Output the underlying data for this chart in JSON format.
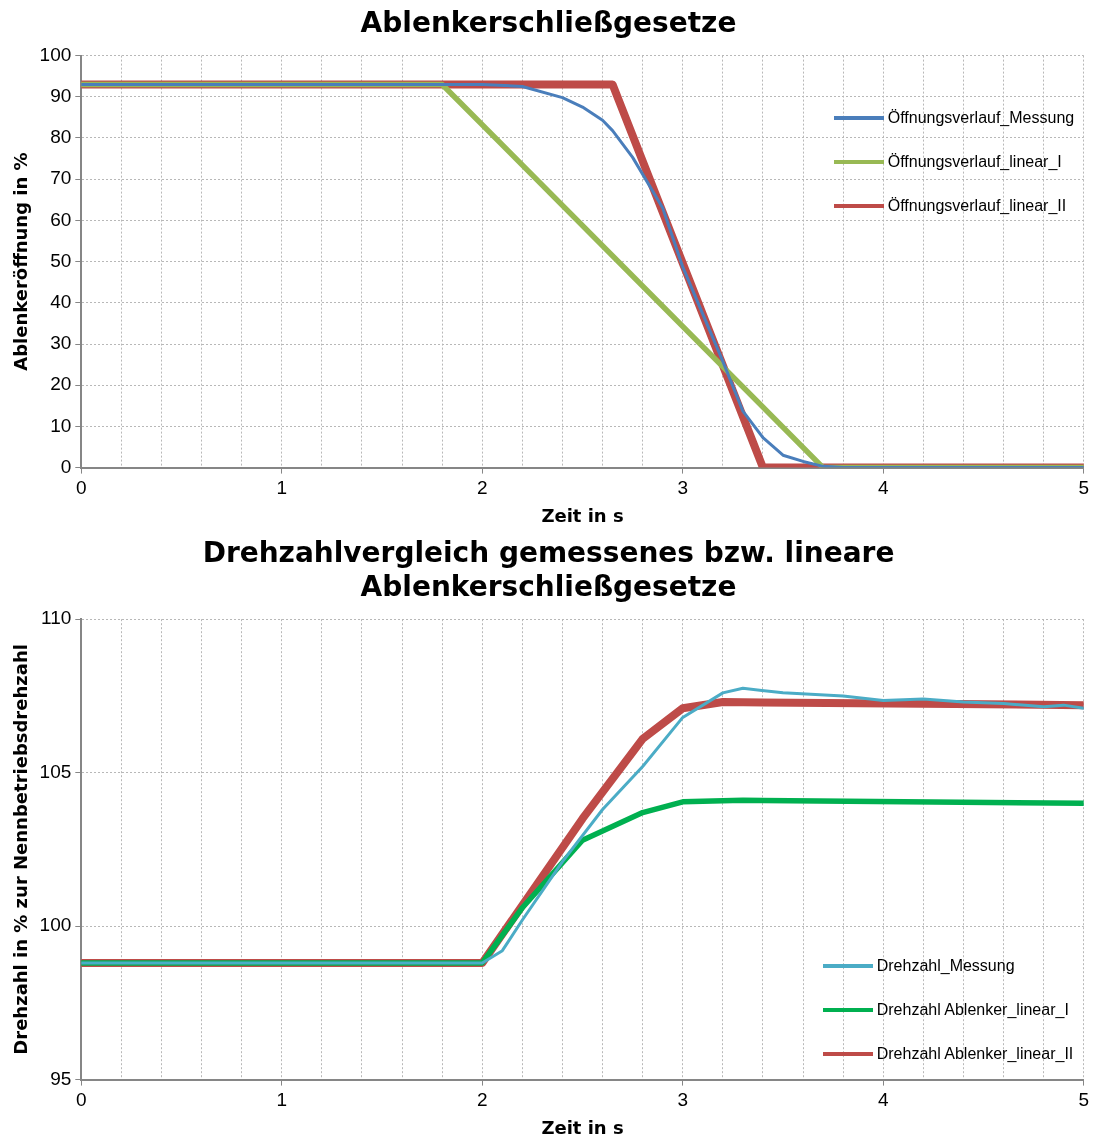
{
  "chart_data": [
    {
      "type": "line",
      "title": "Ablenkerschließgesetze",
      "xlabel": "Zeit in s",
      "ylabel": "Ablenkeröffnung in %",
      "xlim": [
        0,
        5
      ],
      "xticks": [
        0,
        {
          "value": 0.2,
          "label": null
        },
        {
          "value": 0.4,
          "label": null
        },
        {
          "value": 0.6,
          "label": null
        },
        {
          "value": 0.8,
          "label": null
        },
        1,
        {
          "value": 1.2,
          "label": null
        },
        {
          "value": 1.4,
          "label": null
        },
        {
          "value": 1.6,
          "label": null
        },
        {
          "value": 1.8,
          "label": null
        },
        2,
        {
          "value": 2.2,
          "label": null
        },
        {
          "value": 2.4,
          "label": null
        },
        {
          "value": 2.6,
          "label": null
        },
        {
          "value": 2.8,
          "label": null
        },
        3,
        {
          "value": 3.2,
          "label": null
        },
        {
          "value": 3.4,
          "label": null
        },
        {
          "value": 3.6,
          "label": null
        },
        {
          "value": 3.8,
          "label": null
        },
        4,
        {
          "value": 4.2,
          "label": null
        },
        {
          "value": 4.4,
          "label": null
        },
        {
          "value": 4.6,
          "label": null
        },
        {
          "value": 4.8,
          "label": null
        },
        5
      ],
      "ylim": [
        0,
        100
      ],
      "yticks": [
        0,
        10,
        20,
        30,
        40,
        50,
        60,
        70,
        80,
        90,
        100
      ],
      "grid": true,
      "legend": "right",
      "marker": "none",
      "line_style": "solid",
      "series": [
        {
          "name": "Öffnungsverlauf_Messung",
          "color": "#4a7ebb",
          "x": [
            0,
            2.0,
            2.2,
            2.4,
            2.5,
            2.6,
            2.65,
            2.75,
            2.9,
            3.0,
            3.2,
            3.3,
            3.4,
            3.5,
            3.6,
            3.7,
            3.8,
            5
          ],
          "values": [
            93,
            93,
            92.5,
            89.8,
            87.5,
            84.3,
            81.8,
            75.3,
            63,
            48.7,
            25.8,
            13.7,
            7.3,
            3,
            1.5,
            0.3,
            0,
            0
          ]
        },
        {
          "name": "Öffnungsverlauf_linear_I",
          "color": "#98b954",
          "x": [
            0,
            1.8,
            3.7,
            5
          ],
          "values": [
            93,
            93,
            0,
            0
          ]
        },
        {
          "name": "Öffnungsverlauf_linear_II",
          "color": "#be4b48",
          "x": [
            0,
            2.65,
            3.4,
            5
          ],
          "values": [
            93,
            93,
            0,
            0
          ]
        }
      ]
    },
    {
      "type": "line",
      "title": "Drehzahlvergleich gemessenes bzw. lineare\nAblenkerschließgesetze",
      "xlabel": "Zeit in s",
      "ylabel": "Drehzahl in % zur Nennbetriebsdrehzahl",
      "xlim": [
        0,
        5
      ],
      "xticks": [
        0,
        {
          "value": 0.2,
          "label": null
        },
        {
          "value": 0.4,
          "label": null
        },
        {
          "value": 0.6,
          "label": null
        },
        {
          "value": 0.8,
          "label": null
        },
        1,
        {
          "value": 1.2,
          "label": null
        },
        {
          "value": 1.4,
          "label": null
        },
        {
          "value": 1.6,
          "label": null
        },
        {
          "value": 1.8,
          "label": null
        },
        2,
        {
          "value": 2.2,
          "label": null
        },
        {
          "value": 2.4,
          "label": null
        },
        {
          "value": 2.6,
          "label": null
        },
        {
          "value": 2.8,
          "label": null
        },
        3,
        {
          "value": 3.2,
          "label": null
        },
        {
          "value": 3.4,
          "label": null
        },
        {
          "value": 3.6,
          "label": null
        },
        {
          "value": 3.8,
          "label": null
        },
        4,
        {
          "value": 4.2,
          "label": null
        },
        {
          "value": 4.4,
          "label": null
        },
        {
          "value": 4.6,
          "label": null
        },
        {
          "value": 4.8,
          "label": null
        },
        5
      ],
      "ylim": [
        95,
        110
      ],
      "yticks": [
        95,
        100,
        105,
        110
      ],
      "grid": true,
      "legend": "bottom right",
      "marker": "none",
      "line_style": "solid",
      "series": [
        {
          "name": "Drehzahl_Messung",
          "color": "#4bacc6",
          "x": [
            0,
            0.5,
            1.0,
            1.5,
            2.0,
            2.1,
            2.2,
            2.4,
            2.6,
            2.8,
            3.0,
            3.2,
            3.3,
            3.5,
            3.8,
            4.0,
            4.2,
            4.4,
            4.6,
            4.8,
            4.9,
            5.0
          ],
          "values": [
            98.8,
            98.8,
            98.8,
            98.8,
            98.8,
            99.2,
            100.2,
            102.1,
            103.8,
            105.2,
            106.8,
            107.6,
            107.75,
            107.6,
            107.5,
            107.35,
            107.4,
            107.3,
            107.25,
            107.15,
            107.2,
            107.1
          ]
        },
        {
          "name": "Drehzahl Ablenker_linear_I",
          "color": "#00b050",
          "x": [
            0,
            2.0,
            2.2,
            2.5,
            2.8,
            3.0,
            3.3,
            5.0
          ],
          "values": [
            98.8,
            98.8,
            100.6,
            102.8,
            103.7,
            104.05,
            104.1,
            104.0
          ]
        },
        {
          "name": "Drehzahl Ablenker_linear_II",
          "color": "#be4b48",
          "x": [
            0,
            2.0,
            2.5,
            2.8,
            3.0,
            3.2,
            5.0
          ],
          "values": [
            98.8,
            98.8,
            103.5,
            106.1,
            107.1,
            107.3,
            107.2
          ]
        }
      ]
    }
  ]
}
